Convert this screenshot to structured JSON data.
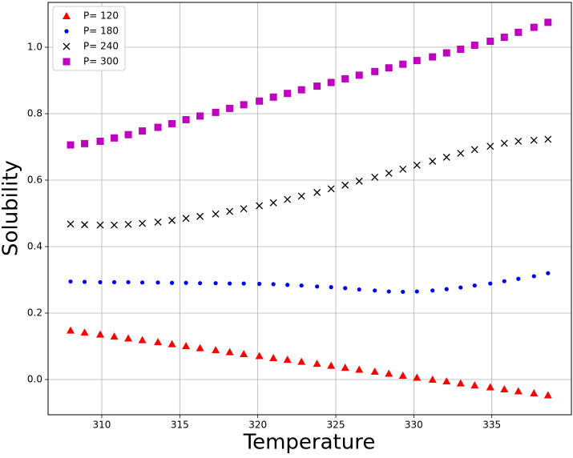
{
  "chart_data": {
    "type": "scatter",
    "x_label": "Temperature",
    "y_label": "Solubility",
    "x": [
      308.0,
      308.9,
      309.9,
      310.8,
      311.7,
      312.6,
      313.6,
      314.5,
      315.4,
      316.3,
      317.3,
      318.2,
      319.1,
      320.1,
      321.0,
      321.9,
      322.8,
      323.8,
      324.7,
      325.6,
      326.5,
      327.5,
      328.4,
      329.3,
      330.2,
      331.2,
      332.1,
      333.0,
      333.9,
      334.9,
      335.8,
      336.7,
      337.7,
      338.6
    ],
    "series": [
      {
        "name": "P= 120",
        "color": "#ff0000",
        "marker": "^",
        "values": [
          0.148,
          0.142,
          0.136,
          0.13,
          0.124,
          0.119,
          0.113,
          0.107,
          0.101,
          0.095,
          0.089,
          0.083,
          0.077,
          0.071,
          0.065,
          0.06,
          0.054,
          0.048,
          0.042,
          0.036,
          0.03,
          0.024,
          0.018,
          0.012,
          0.006,
          0.0,
          -0.005,
          -0.011,
          -0.017,
          -0.023,
          -0.029,
          -0.035,
          -0.041,
          -0.047
        ]
      },
      {
        "name": "P= 180",
        "color": "#0000ff",
        "marker": "o",
        "values": [
          0.295,
          0.294,
          0.293,
          0.293,
          0.293,
          0.292,
          0.292,
          0.291,
          0.291,
          0.29,
          0.29,
          0.289,
          0.289,
          0.288,
          0.287,
          0.285,
          0.283,
          0.28,
          0.278,
          0.275,
          0.271,
          0.268,
          0.265,
          0.264,
          0.265,
          0.268,
          0.272,
          0.277,
          0.283,
          0.289,
          0.296,
          0.303,
          0.311,
          0.32
        ]
      },
      {
        "name": "P= 240",
        "color": "#000000",
        "marker": "x",
        "values": [
          0.468,
          0.466,
          0.465,
          0.465,
          0.467,
          0.47,
          0.474,
          0.479,
          0.485,
          0.491,
          0.498,
          0.506,
          0.514,
          0.523,
          0.532,
          0.542,
          0.552,
          0.563,
          0.574,
          0.585,
          0.597,
          0.609,
          0.621,
          0.633,
          0.645,
          0.657,
          0.669,
          0.681,
          0.692,
          0.702,
          0.711,
          0.717,
          0.72,
          0.723
        ]
      },
      {
        "name": "P= 300",
        "color": "#bf00bf",
        "marker": "s",
        "values": [
          0.706,
          0.71,
          0.717,
          0.727,
          0.737,
          0.748,
          0.759,
          0.77,
          0.782,
          0.793,
          0.804,
          0.816,
          0.827,
          0.838,
          0.85,
          0.861,
          0.872,
          0.883,
          0.894,
          0.905,
          0.916,
          0.927,
          0.938,
          0.949,
          0.96,
          0.971,
          0.983,
          0.994,
          1.006,
          1.018,
          1.03,
          1.045,
          1.06,
          1.075
        ]
      }
    ],
    "xlim": [
      306.56,
      340.1
    ],
    "ylim": [
      -0.106,
      1.135
    ],
    "xticks": [
      310,
      315,
      320,
      325,
      330,
      335
    ],
    "yticks": [
      {
        "value": 0,
        "label": "0.0"
      },
      0.2,
      0.4,
      0.6,
      0.8,
      {
        "value": 1,
        "label": "1.0"
      }
    ],
    "grid": true,
    "legend": "upper left"
  }
}
